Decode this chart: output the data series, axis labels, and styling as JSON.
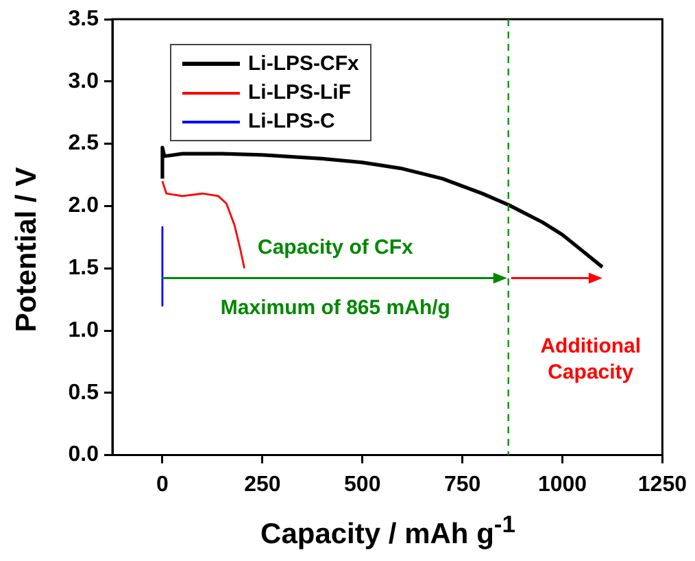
{
  "chart_data": {
    "type": "line",
    "xlabel": "Capacity / mAh g$^{-1}$",
    "ylabel": "Potential / V",
    "xlim": [
      -125,
      1250
    ],
    "xticks": [
      0,
      250,
      500,
      750,
      1000,
      1250
    ],
    "ylim": [
      0,
      3.5
    ],
    "yticks": [
      {
        "value": 0,
        "label": "0.0"
      },
      0.5,
      {
        "value": 1,
        "label": "1.0"
      },
      1.5,
      {
        "value": 2,
        "label": "2.0"
      },
      2.5,
      {
        "value": 3,
        "label": "3.0"
      },
      3.5
    ],
    "grid": false,
    "legend": "top left",
    "marker": "none",
    "line_style": "solid",
    "series": [
      {
        "name": "Li-LPS-CFx",
        "color": "#000000",
        "x": [
          0,
          0,
          5,
          50,
          150,
          250,
          400,
          500,
          600,
          700,
          800,
          865,
          950,
          1000,
          1050,
          1100
        ],
        "values": [
          2.22,
          2.47,
          2.4,
          2.42,
          2.42,
          2.41,
          2.38,
          2.35,
          2.3,
          2.22,
          2.1,
          2.01,
          1.87,
          1.77,
          1.64,
          1.51
        ]
      },
      {
        "name": "Li-LPS-LiF",
        "color": "#ff0000",
        "x": [
          0,
          10,
          50,
          100,
          140,
          160,
          180,
          195,
          205
        ],
        "values": [
          2.2,
          2.1,
          2.08,
          2.1,
          2.08,
          2.02,
          1.85,
          1.65,
          1.5
        ]
      },
      {
        "name": "Li-LPS-C",
        "color": "#0000ff",
        "x": [
          0,
          0
        ],
        "values": [
          1.83,
          1.2
        ]
      }
    ],
    "ref_lines": [
      {
        "axis": "x",
        "value": 865,
        "color": "#009900",
        "line_style": "dashed"
      }
    ],
    "annotations": [
      "Capacity of CFx",
      "Maximum of 865 mAh/g",
      "Additional Capacity"
    ]
  }
}
